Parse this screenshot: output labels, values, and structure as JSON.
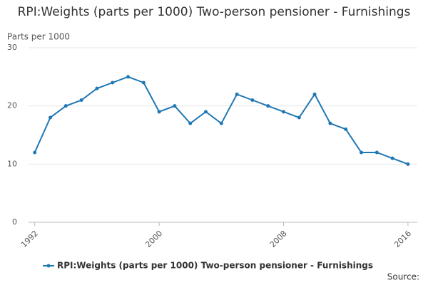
{
  "chart_data": {
    "type": "line",
    "title": "RPI:Weights (parts per 1000) Two-person pensioner - Furnishings",
    "y_label": "Parts per 1000",
    "source": "Source:",
    "x": [
      1992,
      1993,
      1994,
      1995,
      1996,
      1997,
      1998,
      1999,
      2000,
      2001,
      2002,
      2003,
      2004,
      2005,
      2006,
      2007,
      2008,
      2009,
      2010,
      2011,
      2012,
      2013,
      2014,
      2015,
      2016
    ],
    "series": [
      {
        "name": "RPI:Weights (parts per 1000) Two-person pensioner - Furnishings",
        "color": "#1f77b4",
        "values": [
          12,
          18,
          20,
          21,
          23,
          24,
          25,
          24,
          19,
          20,
          17,
          19,
          17,
          22,
          21,
          20,
          19,
          18,
          22,
          17,
          16,
          12,
          12,
          11,
          10
        ]
      }
    ],
    "xlim": [
      1991.6,
      2016.6
    ],
    "xticks": [
      1992,
      2000,
      2008,
      2016
    ],
    "ylim": [
      0,
      30
    ],
    "yticks": [
      0,
      10,
      20,
      30
    ],
    "grid": true
  }
}
